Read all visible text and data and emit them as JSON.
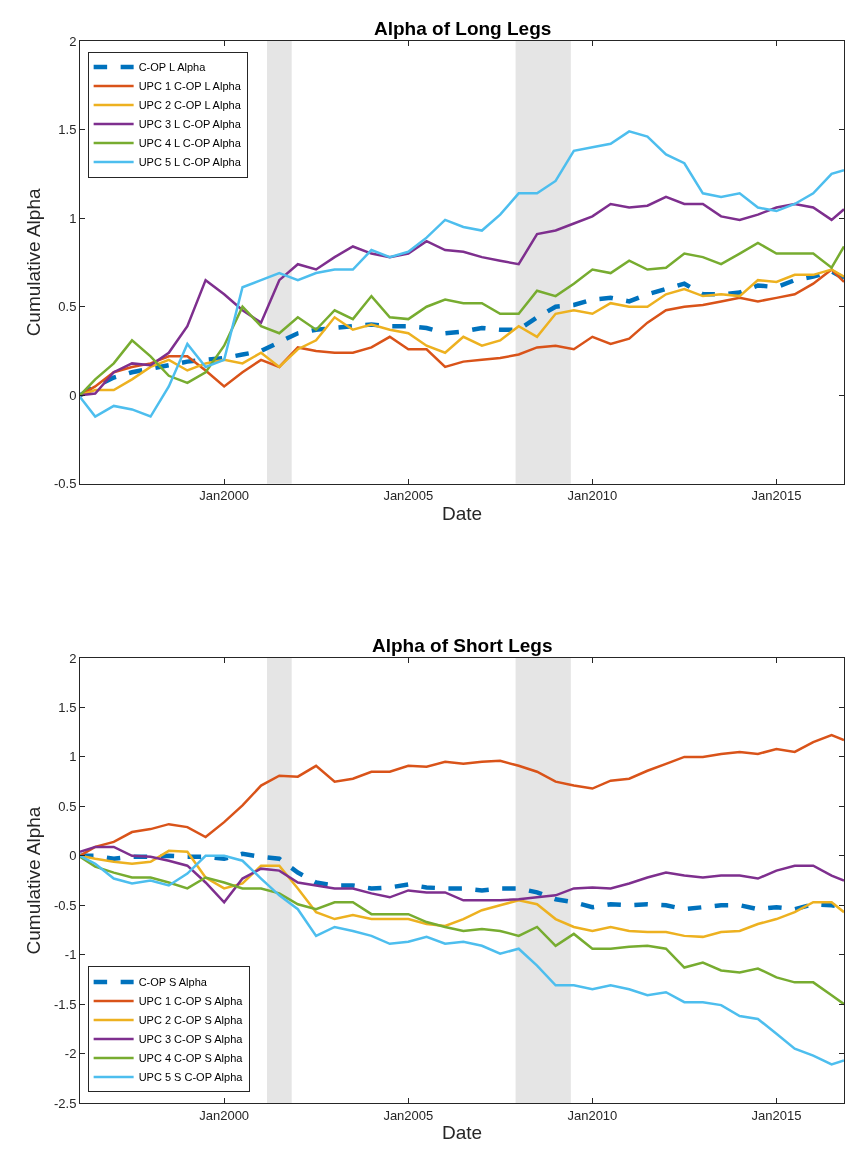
{
  "chart_data": [
    {
      "type": "line",
      "title": "Alpha of Long Legs",
      "xlabel": "Date",
      "ylabel": "Cumulative Alpha",
      "legend": "top left",
      "x": [
        "1996-02",
        "1996-07",
        "1997-01",
        "1997-07",
        "1998-01",
        "1998-07",
        "1999-01",
        "1999-07",
        "2000-01",
        "2000-07",
        "2001-01",
        "2001-07",
        "2002-01",
        "2002-07",
        "2003-01",
        "2003-07",
        "2004-01",
        "2004-07",
        "2005-01",
        "2005-07",
        "2006-01",
        "2006-07",
        "2007-01",
        "2007-07",
        "2008-01",
        "2008-07",
        "2009-01",
        "2009-07",
        "2010-01",
        "2010-07",
        "2011-01",
        "2011-07",
        "2012-01",
        "2012-07",
        "2013-01",
        "2013-07",
        "2014-01",
        "2014-07",
        "2015-01",
        "2015-07",
        "2016-01",
        "2016-07",
        "2016-11"
      ],
      "xlim": [
        "1996-02",
        "2016-11"
      ],
      "xticks": [
        {
          "value": "2000-01-01",
          "label": "Jan2000"
        },
        {
          "value": "2005-01-01",
          "label": "Jan2005"
        },
        {
          "value": "2010-01-01",
          "label": "Jan2010"
        },
        {
          "value": "2015-01-01",
          "label": "Jan2015"
        }
      ],
      "ylim": [
        -0.5,
        2
      ],
      "yticks": [
        -0.5,
        0,
        0.5,
        1,
        1.5,
        2
      ],
      "bands": [
        {
          "axis": "x",
          "from": "2001-03",
          "to": "2001-11",
          "color": "#e5e5e5"
        },
        {
          "axis": "x",
          "from": "2007-12",
          "to": "2009-06",
          "color": "#e5e5e5"
        }
      ],
      "series": [
        {
          "name": "C-OP L Alpha",
          "color": "#0072bd",
          "line_style": "dashed",
          "values": [
            0,
            0.05,
            0.1,
            0.13,
            0.15,
            0.17,
            0.19,
            0.2,
            0.21,
            0.23,
            0.25,
            0.3,
            0.35,
            0.37,
            0.38,
            0.39,
            0.4,
            0.39,
            0.39,
            0.38,
            0.35,
            0.36,
            0.38,
            0.37,
            0.37,
            0.44,
            0.5,
            0.51,
            0.54,
            0.55,
            0.53,
            0.57,
            0.6,
            0.63,
            0.57,
            0.57,
            0.58,
            0.62,
            0.61,
            0.65,
            0.67,
            0.7,
            0.66
          ]
        },
        {
          "name": "UPC 1 C-OP L Alpha",
          "color": "#d95319",
          "line_style": "solid",
          "values": [
            0,
            0.05,
            0.13,
            0.16,
            0.18,
            0.22,
            0.22,
            0.14,
            0.05,
            0.13,
            0.2,
            0.16,
            0.27,
            0.25,
            0.24,
            0.24,
            0.27,
            0.33,
            0.26,
            0.26,
            0.16,
            0.19,
            0.2,
            0.21,
            0.23,
            0.27,
            0.28,
            0.26,
            0.33,
            0.29,
            0.32,
            0.41,
            0.48,
            0.5,
            0.51,
            0.53,
            0.55,
            0.53,
            0.55,
            0.57,
            0.63,
            0.71,
            0.64
          ]
        },
        {
          "name": "UPC 2 C-OP L Alpha",
          "color": "#edb120",
          "line_style": "solid",
          "values": [
            0,
            0.03,
            0.03,
            0.09,
            0.16,
            0.2,
            0.14,
            0.18,
            0.2,
            0.18,
            0.24,
            0.16,
            0.26,
            0.31,
            0.44,
            0.37,
            0.4,
            0.37,
            0.35,
            0.28,
            0.24,
            0.33,
            0.28,
            0.31,
            0.39,
            0.33,
            0.46,
            0.48,
            0.46,
            0.52,
            0.5,
            0.5,
            0.57,
            0.6,
            0.56,
            0.57,
            0.56,
            0.65,
            0.64,
            0.68,
            0.68,
            0.71,
            0.67
          ]
        },
        {
          "name": "UPC 3 L C-OP Alpha",
          "color": "#7e2f8e",
          "line_style": "solid",
          "values": [
            0,
            0.01,
            0.13,
            0.18,
            0.17,
            0.24,
            0.39,
            0.65,
            0.57,
            0.48,
            0.41,
            0.65,
            0.74,
            0.71,
            0.78,
            0.84,
            0.8,
            0.78,
            0.8,
            0.87,
            0.82,
            0.81,
            0.78,
            0.76,
            0.74,
            0.91,
            0.93,
            0.97,
            1.01,
            1.08,
            1.06,
            1.07,
            1.12,
            1.08,
            1.08,
            1.01,
            0.99,
            1.02,
            1.06,
            1.08,
            1.06,
            0.99,
            1.05
          ]
        },
        {
          "name": "UPC 4 L C-OP Alpha",
          "color": "#77ac30",
          "line_style": "solid",
          "values": [
            0,
            0.09,
            0.18,
            0.31,
            0.22,
            0.11,
            0.07,
            0.13,
            0.28,
            0.5,
            0.39,
            0.35,
            0.44,
            0.37,
            0.48,
            0.43,
            0.56,
            0.44,
            0.43,
            0.5,
            0.54,
            0.52,
            0.52,
            0.46,
            0.46,
            0.59,
            0.56,
            0.63,
            0.71,
            0.69,
            0.76,
            0.71,
            0.72,
            0.8,
            0.78,
            0.74,
            0.8,
            0.86,
            0.8,
            0.8,
            0.8,
            0.72,
            0.84
          ]
        },
        {
          "name": "UPC 5 L C-OP Alpha",
          "color": "#4dbeee",
          "line_style": "solid",
          "values": [
            -0.01,
            -0.12,
            -0.06,
            -0.08,
            -0.12,
            0.05,
            0.29,
            0.16,
            0.2,
            0.61,
            0.65,
            0.69,
            0.65,
            0.69,
            0.71,
            0.71,
            0.82,
            0.78,
            0.81,
            0.89,
            0.99,
            0.95,
            0.93,
            1.02,
            1.14,
            1.14,
            1.21,
            1.38,
            1.4,
            1.42,
            1.49,
            1.46,
            1.36,
            1.31,
            1.14,
            1.12,
            1.14,
            1.06,
            1.04,
            1.08,
            1.14,
            1.25,
            1.27
          ]
        }
      ]
    },
    {
      "type": "line",
      "title": "Alpha of Short Legs",
      "xlabel": "Date",
      "ylabel": "Cumulative Alpha",
      "legend": "bottom left",
      "x": [
        "1996-02",
        "1996-07",
        "1997-01",
        "1997-07",
        "1998-01",
        "1998-07",
        "1999-01",
        "1999-07",
        "2000-01",
        "2000-07",
        "2001-01",
        "2001-07",
        "2002-01",
        "2002-07",
        "2003-01",
        "2003-07",
        "2004-01",
        "2004-07",
        "2005-01",
        "2005-07",
        "2006-01",
        "2006-07",
        "2007-01",
        "2007-07",
        "2008-01",
        "2008-07",
        "2009-01",
        "2009-07",
        "2010-01",
        "2010-07",
        "2011-01",
        "2011-07",
        "2012-01",
        "2012-07",
        "2013-01",
        "2013-07",
        "2014-01",
        "2014-07",
        "2015-01",
        "2015-07",
        "2016-01",
        "2016-07",
        "2016-11"
      ],
      "xlim": [
        "1996-02",
        "2016-11"
      ],
      "xticks": [
        {
          "value": "2000-01-01",
          "label": "Jan2000"
        },
        {
          "value": "2005-01-01",
          "label": "Jan2005"
        },
        {
          "value": "2010-01-01",
          "label": "Jan2010"
        },
        {
          "value": "2015-01-01",
          "label": "Jan2015"
        }
      ],
      "ylim": [
        -2.5,
        2
      ],
      "yticks": [
        -2.5,
        -2,
        -1.5,
        -1,
        -0.5,
        0,
        0.5,
        1,
        1.5,
        2
      ],
      "bands": [
        {
          "axis": "x",
          "from": "2001-03",
          "to": "2001-11",
          "color": "#e5e5e5"
        },
        {
          "axis": "x",
          "from": "2007-12",
          "to": "2009-06",
          "color": "#e5e5e5"
        }
      ],
      "series": [
        {
          "name": "C-OP S Alpha",
          "color": "#0072bd",
          "line_style": "dashed",
          "values": [
            0,
            0,
            -0.03,
            -0.01,
            -0.01,
            0,
            -0.01,
            -0.01,
            -0.03,
            0.02,
            -0.01,
            -0.03,
            -0.17,
            -0.27,
            -0.3,
            -0.3,
            -0.33,
            -0.32,
            -0.29,
            -0.32,
            -0.33,
            -0.33,
            -0.35,
            -0.33,
            -0.33,
            -0.37,
            -0.44,
            -0.47,
            -0.52,
            -0.49,
            -0.5,
            -0.49,
            -0.5,
            -0.54,
            -0.52,
            -0.5,
            -0.5,
            -0.54,
            -0.52,
            -0.54,
            -0.49,
            -0.5,
            -0.52
          ]
        },
        {
          "name": "UPC 1 C-OP S Alpha",
          "color": "#d95319",
          "line_style": "solid",
          "values": [
            0,
            0.09,
            0.14,
            0.24,
            0.27,
            0.32,
            0.29,
            0.19,
            0.34,
            0.51,
            0.71,
            0.81,
            0.8,
            0.91,
            0.75,
            0.78,
            0.85,
            0.85,
            0.91,
            0.9,
            0.95,
            0.93,
            0.95,
            0.96,
            0.91,
            0.85,
            0.75,
            0.71,
            0.68,
            0.76,
            0.78,
            0.86,
            0.93,
            1.0,
            1.0,
            1.03,
            1.05,
            1.03,
            1.08,
            1.05,
            1.15,
            1.22,
            1.17
          ]
        },
        {
          "name": "UPC 2 C-OP S Alpha",
          "color": "#edb120",
          "line_style": "solid",
          "values": [
            0,
            -0.03,
            -0.06,
            -0.08,
            -0.06,
            0.05,
            0.04,
            -0.22,
            -0.33,
            -0.28,
            -0.1,
            -0.1,
            -0.33,
            -0.57,
            -0.64,
            -0.6,
            -0.64,
            -0.64,
            -0.64,
            -0.69,
            -0.71,
            -0.64,
            -0.55,
            -0.5,
            -0.45,
            -0.49,
            -0.64,
            -0.72,
            -0.76,
            -0.72,
            -0.76,
            -0.77,
            -0.77,
            -0.81,
            -0.82,
            -0.77,
            -0.76,
            -0.69,
            -0.64,
            -0.57,
            -0.47,
            -0.47,
            -0.57
          ]
        },
        {
          "name": "UPC 3 C-OP S Alpha",
          "color": "#7e2f8e",
          "line_style": "solid",
          "values": [
            0.04,
            0.09,
            0.09,
            0,
            -0.01,
            -0.05,
            -0.1,
            -0.27,
            -0.47,
            -0.23,
            -0.13,
            -0.15,
            -0.27,
            -0.3,
            -0.33,
            -0.33,
            -0.38,
            -0.42,
            -0.35,
            -0.37,
            -0.37,
            -0.45,
            -0.45,
            -0.45,
            -0.44,
            -0.42,
            -0.4,
            -0.33,
            -0.32,
            -0.33,
            -0.28,
            -0.22,
            -0.17,
            -0.2,
            -0.22,
            -0.2,
            -0.2,
            -0.23,
            -0.15,
            -0.1,
            -0.1,
            -0.2,
            -0.25
          ]
        },
        {
          "name": "UPC 4 C-OP S Alpha",
          "color": "#77ac30",
          "line_style": "solid",
          "values": [
            -0.01,
            -0.11,
            -0.17,
            -0.22,
            -0.22,
            -0.27,
            -0.33,
            -0.22,
            -0.27,
            -0.33,
            -0.33,
            -0.38,
            -0.49,
            -0.54,
            -0.47,
            -0.47,
            -0.59,
            -0.59,
            -0.59,
            -0.67,
            -0.72,
            -0.76,
            -0.74,
            -0.76,
            -0.81,
            -0.72,
            -0.91,
            -0.79,
            -0.94,
            -0.94,
            -0.92,
            -0.91,
            -0.94,
            -1.13,
            -1.08,
            -1.16,
            -1.18,
            -1.14,
            -1.23,
            -1.28,
            -1.28,
            -1.41,
            -1.5
          ]
        },
        {
          "name": "UPC 5 S C-OP Alpha",
          "color": "#4dbeee",
          "line_style": "solid",
          "values": [
            0,
            -0.08,
            -0.23,
            -0.28,
            -0.25,
            -0.3,
            -0.18,
            0,
            0,
            -0.05,
            -0.23,
            -0.4,
            -0.54,
            -0.81,
            -0.72,
            -0.76,
            -0.81,
            -0.89,
            -0.87,
            -0.82,
            -0.89,
            -0.87,
            -0.91,
            -0.99,
            -0.94,
            -1.11,
            -1.31,
            -1.31,
            -1.35,
            -1.31,
            -1.35,
            -1.41,
            -1.38,
            -1.48,
            -1.48,
            -1.51,
            -1.62,
            -1.65,
            -1.8,
            -1.95,
            -2.02,
            -2.11,
            -2.07
          ]
        }
      ]
    }
  ]
}
